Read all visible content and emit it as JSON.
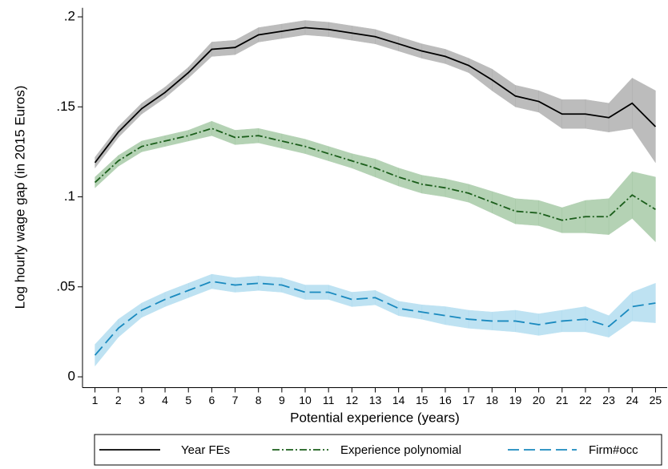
{
  "chart_data": {
    "type": "line",
    "x_label": "Potential experience (years)",
    "y_label": "Log hourly wage gap (in 2015 Euros)",
    "x": [
      1,
      2,
      3,
      4,
      5,
      6,
      7,
      8,
      9,
      10,
      11,
      12,
      13,
      14,
      15,
      16,
      17,
      18,
      19,
      20,
      21,
      22,
      23,
      24,
      25
    ],
    "xlim": [
      0.5,
      25.5
    ],
    "xticks": [
      1,
      2,
      3,
      4,
      5,
      6,
      7,
      8,
      9,
      10,
      11,
      12,
      13,
      14,
      15,
      16,
      17,
      18,
      19,
      20,
      21,
      22,
      23,
      24,
      25
    ],
    "ylim": [
      -0.006,
      0.205
    ],
    "yticks": [
      0,
      {
        "value": 0.05,
        "label": ".05"
      },
      {
        "value": 0.1,
        "label": ".1"
      },
      {
        "value": 0.15,
        "label": ".15"
      },
      {
        "value": 0.2,
        "label": ".2"
      }
    ],
    "legend": "bottom",
    "series": [
      {
        "name": "Year FEs",
        "color": "#000000",
        "band_color": "#a6a6a6",
        "dash": "none",
        "values": [
          0.119,
          0.136,
          0.149,
          0.158,
          0.169,
          0.182,
          0.183,
          0.19,
          0.192,
          0.194,
          0.193,
          0.191,
          0.189,
          0.185,
          0.181,
          0.178,
          0.173,
          0.165,
          0.156,
          0.153,
          0.146,
          0.146,
          0.144,
          0.152,
          0.139
        ],
        "lower": [
          0.116,
          0.133,
          0.146,
          0.155,
          0.166,
          0.178,
          0.179,
          0.186,
          0.188,
          0.19,
          0.189,
          0.187,
          0.185,
          0.181,
          0.177,
          0.174,
          0.169,
          0.159,
          0.15,
          0.147,
          0.138,
          0.138,
          0.136,
          0.138,
          0.119
        ],
        "upper": [
          0.122,
          0.139,
          0.152,
          0.161,
          0.172,
          0.186,
          0.187,
          0.194,
          0.196,
          0.198,
          0.197,
          0.195,
          0.193,
          0.189,
          0.185,
          0.182,
          0.177,
          0.171,
          0.162,
          0.159,
          0.154,
          0.154,
          0.152,
          0.166,
          0.159
        ]
      },
      {
        "name": "Experience polynomial",
        "color": "#1b5e1b",
        "band_color": "#9cc39c",
        "dash": "9 3 2 3",
        "values": [
          0.108,
          0.12,
          0.128,
          0.131,
          0.134,
          0.138,
          0.133,
          0.134,
          0.131,
          0.128,
          0.124,
          0.12,
          0.116,
          0.111,
          0.107,
          0.105,
          0.102,
          0.097,
          0.092,
          0.091,
          0.087,
          0.089,
          0.089,
          0.101,
          0.093
        ],
        "lower": [
          0.105,
          0.117,
          0.125,
          0.128,
          0.131,
          0.134,
          0.129,
          0.13,
          0.127,
          0.124,
          0.12,
          0.116,
          0.111,
          0.106,
          0.102,
          0.1,
          0.097,
          0.091,
          0.085,
          0.084,
          0.08,
          0.08,
          0.079,
          0.088,
          0.075
        ],
        "upper": [
          0.111,
          0.123,
          0.131,
          0.134,
          0.137,
          0.142,
          0.137,
          0.138,
          0.135,
          0.132,
          0.128,
          0.124,
          0.121,
          0.116,
          0.112,
          0.11,
          0.107,
          0.103,
          0.099,
          0.098,
          0.094,
          0.098,
          0.099,
          0.114,
          0.111
        ]
      },
      {
        "name": "Firm#occ",
        "color": "#1a8abf",
        "band_color": "#a9d9ee",
        "dash": "14 6",
        "values": [
          0.012,
          0.027,
          0.037,
          0.043,
          0.048,
          0.053,
          0.051,
          0.052,
          0.051,
          0.047,
          0.047,
          0.043,
          0.044,
          0.038,
          0.036,
          0.034,
          0.032,
          0.031,
          0.031,
          0.029,
          0.031,
          0.032,
          0.028,
          0.039,
          0.041
        ],
        "lower": [
          0.006,
          0.022,
          0.033,
          0.039,
          0.044,
          0.049,
          0.047,
          0.048,
          0.047,
          0.043,
          0.043,
          0.039,
          0.04,
          0.034,
          0.032,
          0.029,
          0.027,
          0.026,
          0.025,
          0.023,
          0.025,
          0.025,
          0.022,
          0.031,
          0.03
        ],
        "upper": [
          0.018,
          0.032,
          0.041,
          0.047,
          0.052,
          0.057,
          0.055,
          0.056,
          0.055,
          0.051,
          0.051,
          0.047,
          0.048,
          0.042,
          0.04,
          0.039,
          0.037,
          0.036,
          0.037,
          0.035,
          0.037,
          0.039,
          0.034,
          0.047,
          0.052
        ]
      }
    ]
  }
}
